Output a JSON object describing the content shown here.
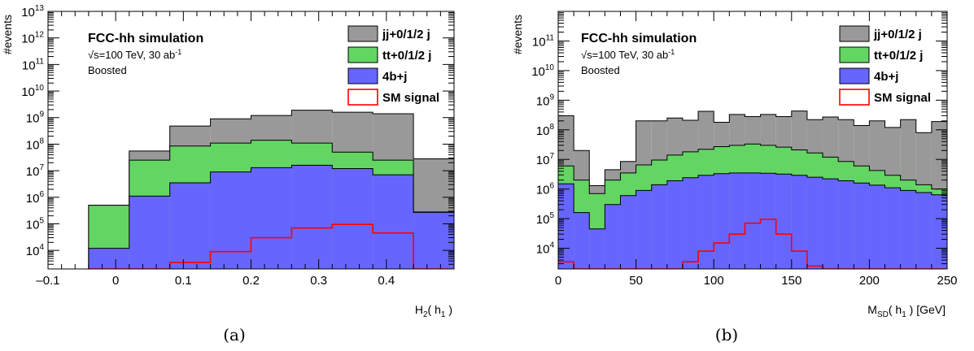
{
  "chart_data": [
    {
      "type": "area",
      "panel_caption": "(a)",
      "title": "FCC-hh simulation",
      "subtitle_lines": [
        "√s=100 TeV, 30 ab",
        "Boosted"
      ],
      "subtitle_sup": "-1",
      "xlabel": "H",
      "xlabel_sub": "2",
      "xlabel_arg": "h",
      "xlabel_arg_sub": "1",
      "xlabel_tail": "",
      "ylabel": "#events",
      "xlim": [
        -0.1,
        0.5
      ],
      "ylim": [
        2000,
        10000000000000.0
      ],
      "yscale": "log",
      "xticks": [
        -0.1,
        0,
        0.1,
        0.2,
        0.3,
        0.4
      ],
      "xtick_labels": [
        "–0.1",
        "0",
        "0.1",
        "0.2",
        "0.3",
        "0.4"
      ],
      "yticks": [
        10000,
        100000,
        1000000,
        10000000,
        100000000,
        1000000000,
        10000000000,
        100000000000,
        1000000000000,
        10000000000000
      ],
      "ytick_base": "10",
      "ytick_exponents": [
        "4",
        "5",
        "6",
        "7",
        "8",
        "9",
        "10",
        "11",
        "12",
        "13"
      ],
      "legend_position": "top-right",
      "legend": [
        "jj+0/1/2 j",
        "tt+0/1/2 j",
        "4b+j",
        "SM signal"
      ],
      "bin_edges": [
        -0.04,
        0.02,
        0.08,
        0.14,
        0.2,
        0.26,
        0.32,
        0.38,
        0.44,
        0.5
      ],
      "series": [
        {
          "name": "jj+0/1/2 j",
          "style": "filled",
          "color": "#999999",
          "values": [
            500000,
            55000000,
            480000000,
            900000000,
            1200000000,
            1900000000,
            1600000000,
            1400000000,
            28000000
          ]
        },
        {
          "name": "tt+0/1/2 j",
          "style": "filled",
          "color": "#63d563",
          "values": [
            500000,
            25000000,
            85000000,
            110000000,
            140000000,
            110000000,
            50000000,
            25000000,
            280000
          ]
        },
        {
          "name": "4b+j",
          "style": "filled",
          "color": "#6666ff",
          "values": [
            12000,
            1100000,
            3500000,
            9000000,
            13000000,
            16000000,
            12000000,
            7000000,
            270000
          ]
        },
        {
          "name": "SM signal",
          "style": "outline",
          "color": "#ff0000",
          "values": [
            0,
            0,
            3500,
            9000,
            30000,
            70000,
            95000,
            45000,
            0
          ]
        }
      ]
    },
    {
      "type": "area",
      "panel_caption": "(b)",
      "title": "FCC-hh simulation",
      "subtitle_lines": [
        "√s=100 TeV, 30 ab",
        "Boosted"
      ],
      "subtitle_sup": "-1",
      "xlabel": "M",
      "xlabel_sub": "SD",
      "xlabel_arg": "h",
      "xlabel_arg_sub": "1",
      "xlabel_tail": " [GeV]",
      "ylabel": "#events",
      "xlim": [
        0,
        250
      ],
      "ylim": [
        2000,
        1000000000000.0
      ],
      "yscale": "log",
      "xticks": [
        0,
        50,
        100,
        150,
        200,
        250
      ],
      "xtick_labels": [
        "0",
        "50",
        "100",
        "150",
        "200",
        "250"
      ],
      "yticks": [
        10000,
        100000,
        1000000,
        10000000,
        100000000,
        1000000000,
        10000000000,
        100000000000
      ],
      "ytick_base": "10",
      "ytick_exponents": [
        "4",
        "5",
        "6",
        "7",
        "8",
        "9",
        "10",
        "11"
      ],
      "legend_position": "top-right",
      "legend": [
        "jj+0/1/2 j",
        "tt+0/1/2 j",
        "4b+j",
        "SM signal"
      ],
      "bin_edges": [
        0,
        10,
        20,
        30,
        40,
        50,
        60,
        70,
        80,
        90,
        100,
        110,
        120,
        130,
        140,
        150,
        160,
        170,
        180,
        190,
        200,
        210,
        220,
        230,
        240,
        250
      ],
      "series": [
        {
          "name": "jj+0/1/2 j",
          "style": "filled",
          "color": "#999999",
          "values": [
            300000000,
            20000000,
            1300000,
            4500000,
            8500000,
            200000000,
            200000000,
            250000000,
            210000000,
            420000000,
            180000000,
            330000000,
            280000000,
            330000000,
            280000000,
            430000000,
            220000000,
            270000000,
            220000000,
            140000000,
            200000000,
            120000000,
            220000000,
            80000000,
            190000000
          ]
        },
        {
          "name": "tt+0/1/2 j",
          "style": "filled",
          "color": "#63d563",
          "values": [
            6000000,
            2000000,
            700000,
            2000000,
            3500000,
            6500000,
            9500000,
            14000000,
            18000000,
            22000000,
            27000000,
            30000000,
            33000000,
            30000000,
            26000000,
            21000000,
            16500000,
            12000000,
            8500000,
            6000000,
            4200000,
            2900000,
            2000000,
            1400000,
            1000000
          ]
        },
        {
          "name": "4b+j",
          "style": "filled",
          "color": "#6666ff",
          "values": [
            1500000,
            160000,
            45000,
            300000,
            600000,
            900000,
            1400000,
            1900000,
            2400000,
            2900000,
            3300000,
            3500000,
            3500000,
            3400000,
            3200000,
            2900000,
            2500000,
            2200000,
            1900000,
            1600000,
            1350000,
            1100000,
            900000,
            760000,
            640000
          ]
        },
        {
          "name": "SM signal",
          "style": "outline",
          "color": "#ff0000",
          "values": [
            3500,
            0,
            0,
            0,
            0,
            0,
            0,
            0,
            3500,
            8000,
            15000,
            30000,
            70000,
            95000,
            30000,
            8000,
            2500,
            0,
            0,
            0,
            0,
            0,
            0,
            0,
            0
          ]
        }
      ]
    }
  ]
}
